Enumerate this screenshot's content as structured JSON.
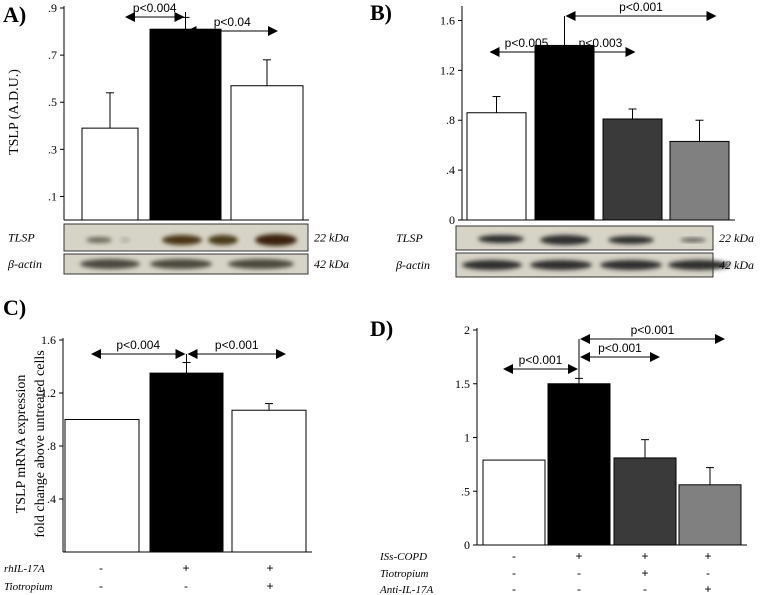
{
  "chart_data": [
    {
      "panel": "A)",
      "type": "bar",
      "ylabel": "TSLP (A.D.U.)",
      "ytick_labels": [
        ".1",
        ".3",
        ".5",
        ".7",
        ".9"
      ],
      "ylim": [
        0,
        0.9
      ],
      "values": [
        0.39,
        0.81,
        0.57
      ],
      "errors": [
        0.15,
        0.05,
        0.11
      ],
      "colors": [
        "#ffffff",
        "#000000",
        "#ffffff"
      ],
      "comparisons": [
        {
          "label": "p<0.004",
          "from": 0,
          "to": 1
        },
        {
          "label": "p<0.04",
          "from": 1,
          "to": 2
        }
      ],
      "blots": [
        {
          "label": "TLSP",
          "size": "22 kDa"
        },
        {
          "label": "β-actin",
          "size": "42 kDa"
        }
      ]
    },
    {
      "panel": "B)",
      "type": "bar",
      "ylabel": "",
      "ytick_labels": [
        "0",
        ".4",
        ".8",
        "1.2",
        "1.6"
      ],
      "ylim": [
        0,
        1.7
      ],
      "values": [
        0.86,
        1.4,
        0.81,
        0.63
      ],
      "errors": [
        0.13,
        0.0,
        0.08,
        0.17
      ],
      "colors": [
        "#ffffff",
        "#000000",
        "#3a3a3a",
        "#808080"
      ],
      "comparisons": [
        {
          "label": "p<0.005",
          "from": 0,
          "to": 1
        },
        {
          "label": "p<0.003",
          "from": 1,
          "to": 2
        },
        {
          "label": "p<0.001",
          "from": 1,
          "to": 3
        }
      ],
      "blots": [
        {
          "label": "TLSP",
          "size": "22 kDa"
        },
        {
          "label": "β-actin",
          "size": "42 kDa"
        }
      ]
    },
    {
      "panel": "C)",
      "type": "bar",
      "ylabel_lines": [
        "TSLP mRNA expression",
        "fold change above untreated cells"
      ],
      "ytick_labels": [
        ".4",
        ".8",
        "1.2",
        "1.6"
      ],
      "ylim": [
        0,
        1.6
      ],
      "values": [
        1.0,
        1.35,
        1.07
      ],
      "errors": [
        0.0,
        0.08,
        0.05
      ],
      "colors": [
        "#ffffff",
        "#000000",
        "#ffffff"
      ],
      "comparisons": [
        {
          "label": "p<0.004",
          "from": 0,
          "to": 1
        },
        {
          "label": "p<0.001",
          "from": 1,
          "to": 2
        }
      ],
      "conditions": [
        {
          "name": "rhIL-17A",
          "signs": [
            "-",
            "+",
            "+"
          ]
        },
        {
          "name": "Tiotropium",
          "signs": [
            "-",
            "-",
            "+"
          ]
        }
      ]
    },
    {
      "panel": "D)",
      "type": "bar",
      "ylabel": "",
      "ytick_labels": [
        "0",
        ".5",
        "1",
        "1.5",
        "2"
      ],
      "ylim": [
        0,
        2
      ],
      "values": [
        0.79,
        1.5,
        0.81,
        0.56
      ],
      "errors": [
        0.0,
        0.05,
        0.17,
        0.16
      ],
      "colors": [
        "#ffffff",
        "#000000",
        "#3a3a3a",
        "#808080"
      ],
      "comparisons": [
        {
          "label": "p<0.001",
          "from": 0,
          "to": 1
        },
        {
          "label": "p<0.001",
          "from": 1,
          "to": 2
        },
        {
          "label": "p<0.001",
          "from": 1,
          "to": 3
        }
      ],
      "conditions": [
        {
          "name": "ISs-COPD",
          "signs": [
            "-",
            "+",
            "+",
            "+"
          ]
        },
        {
          "name": "Tiotropium",
          "signs": [
            "-",
            "-",
            "+",
            "-"
          ]
        },
        {
          "name": "Anti-IL-17A",
          "signs": [
            "-",
            "-",
            "-",
            "+"
          ]
        }
      ]
    }
  ]
}
